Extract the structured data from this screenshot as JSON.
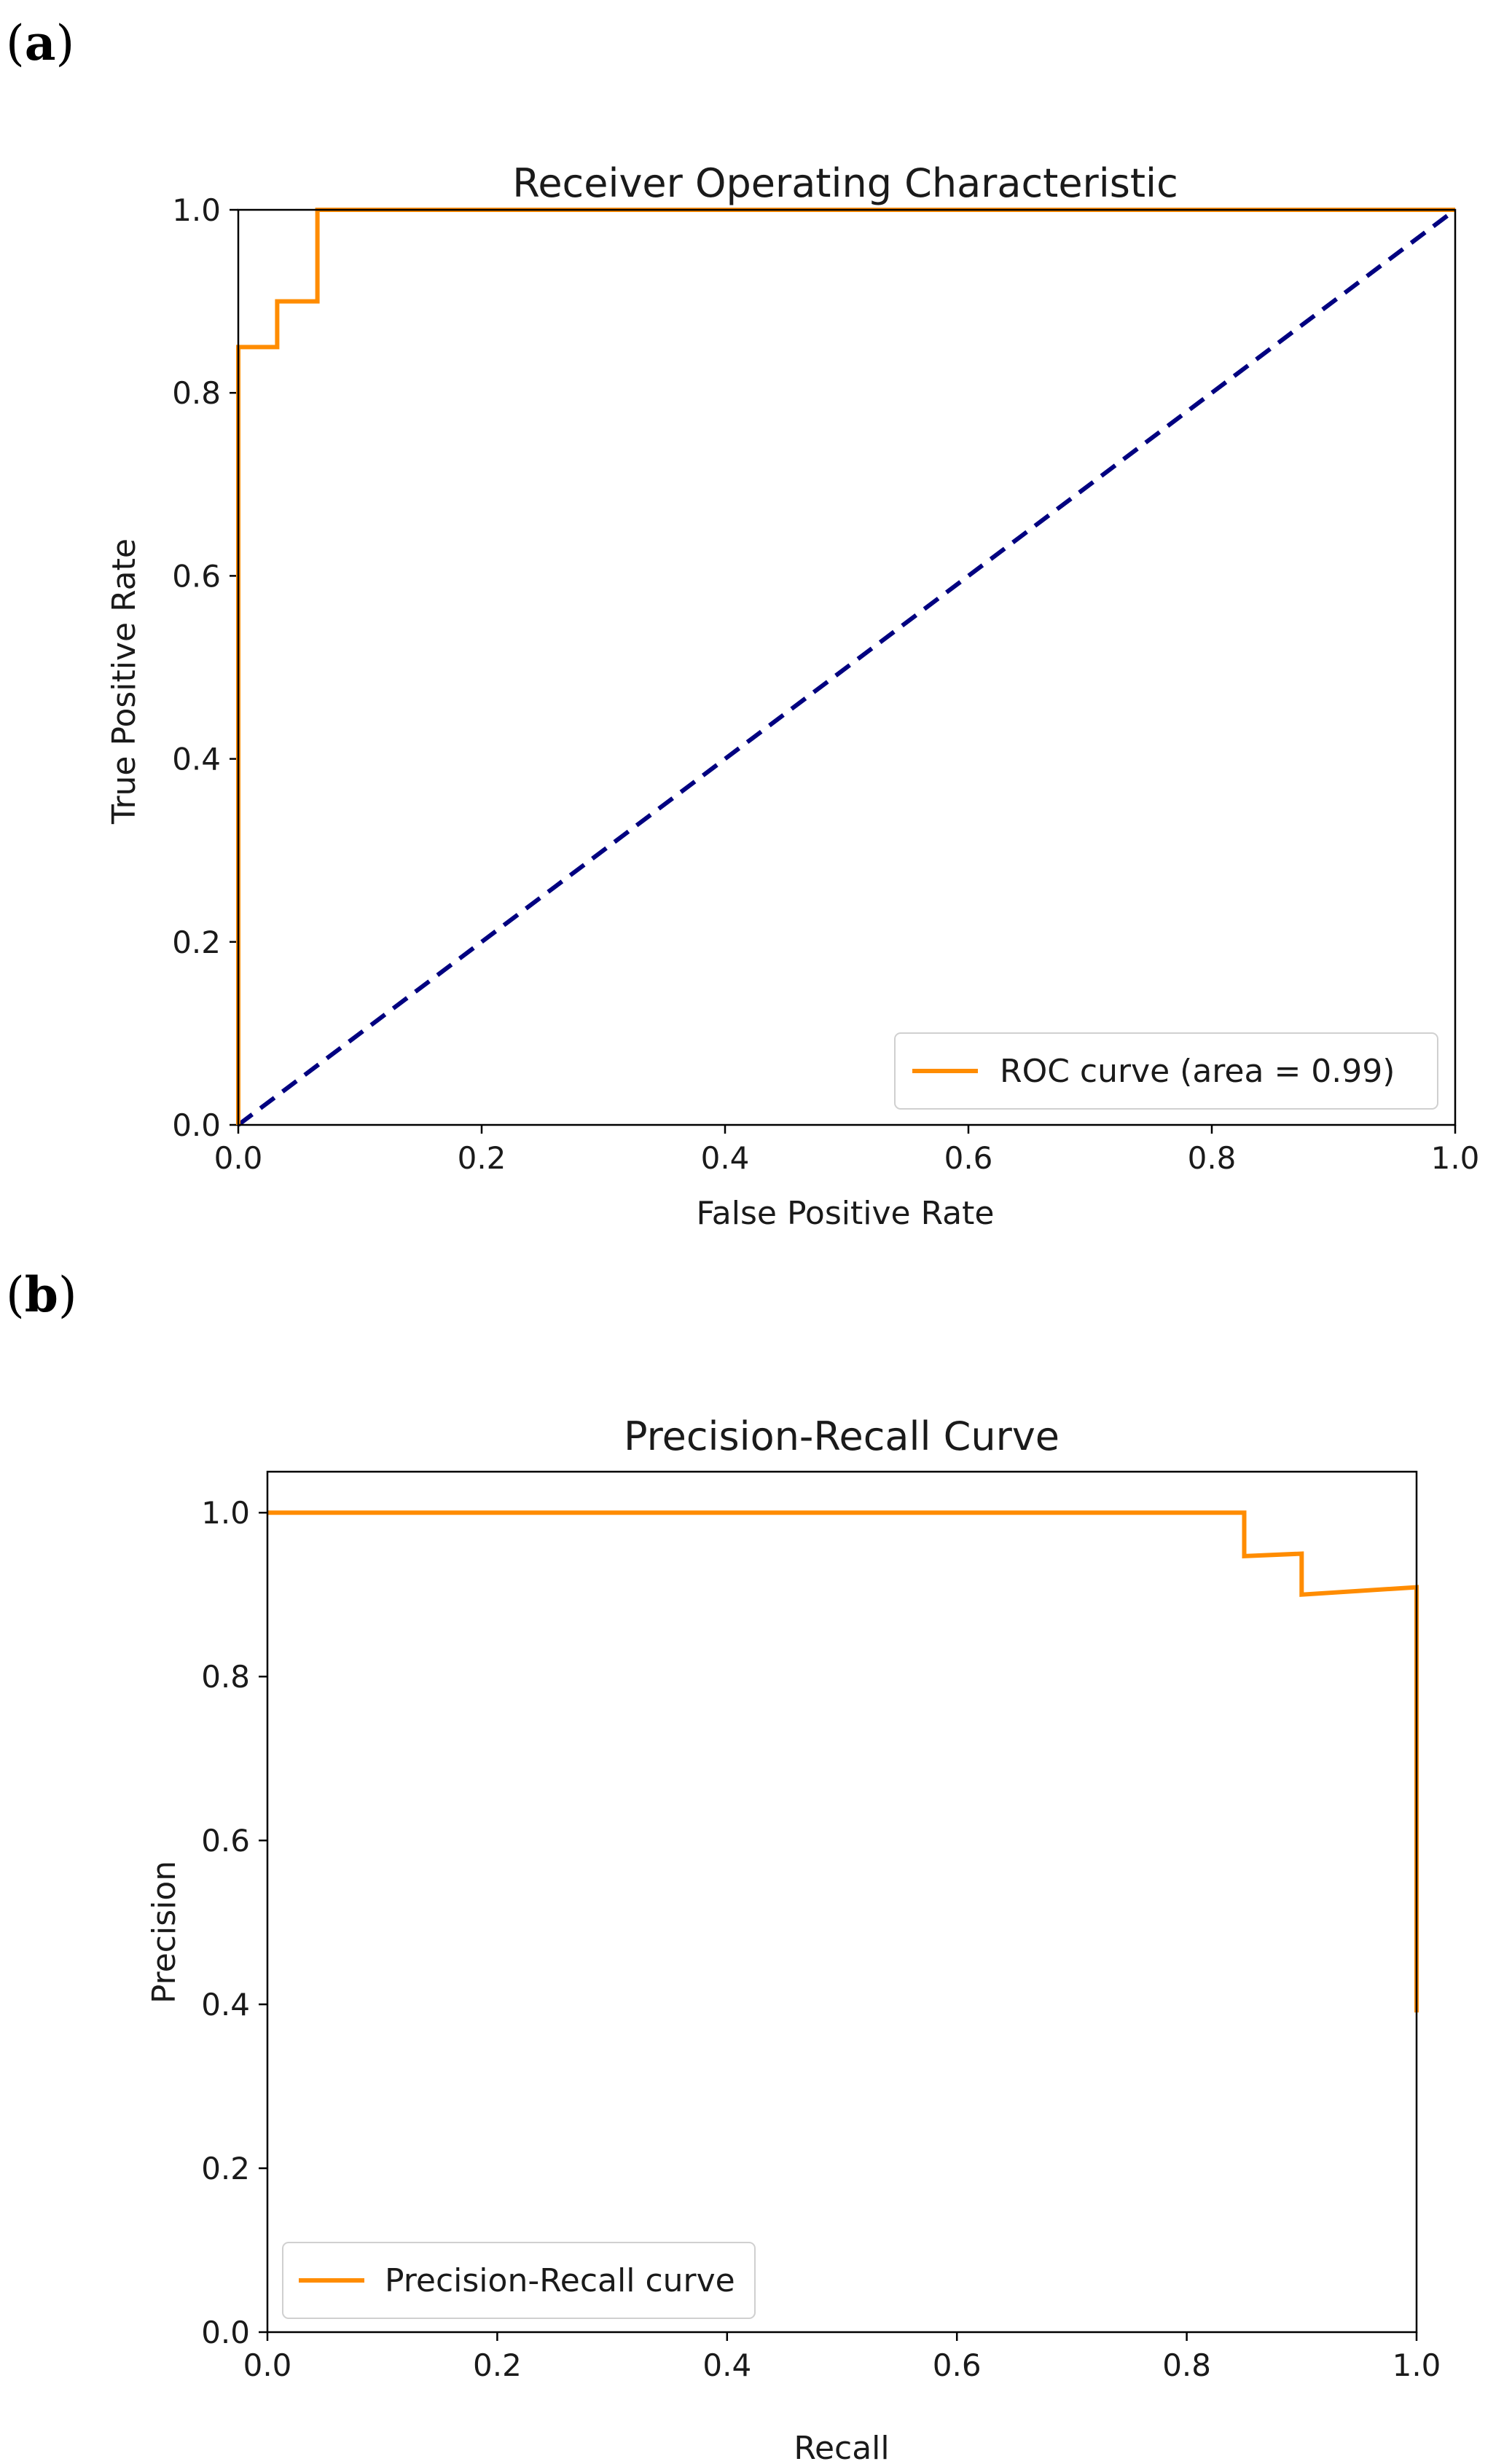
{
  "panels": [
    {
      "label_open": "(",
      "label_letter": "a",
      "label_close": ")"
    },
    {
      "label_open": "(",
      "label_letter": "b",
      "label_close": ")"
    }
  ],
  "chart_data": [
    {
      "type": "line",
      "title": "Receiver Operating Characteristic",
      "xlabel": "False Positive Rate",
      "ylabel": "True Positive Rate",
      "xlim": [
        0.0,
        1.0
      ],
      "ylim": [
        0.0,
        1.0
      ],
      "xticks": [
        "0.0",
        "0.2",
        "0.4",
        "0.6",
        "0.8",
        "1.0"
      ],
      "yticks": [
        "0.0",
        "0.2",
        "0.4",
        "0.6",
        "0.8",
        "1.0"
      ],
      "grid": false,
      "legend_position": "lower-right",
      "series": [
        {
          "name": "ROC curve (area = 0.99)",
          "color": "#ff8c00",
          "style": "solid",
          "in_legend": true,
          "x": [
            0.0,
            0.0,
            0.032,
            0.032,
            0.065,
            0.065,
            1.0
          ],
          "y": [
            0.0,
            0.85,
            0.85,
            0.9,
            0.9,
            1.0,
            1.0
          ]
        },
        {
          "name": "Chance",
          "color": "#000080",
          "style": "dashed",
          "in_legend": false,
          "x": [
            0.0,
            1.0
          ],
          "y": [
            0.0,
            1.0
          ]
        }
      ]
    },
    {
      "type": "line",
      "title": "Precision-Recall Curve",
      "xlabel": "Recall",
      "ylabel": "Precision",
      "xlim": [
        0.0,
        1.0
      ],
      "ylim": [
        0.0,
        1.05
      ],
      "xticks": [
        "0.0",
        "0.2",
        "0.4",
        "0.6",
        "0.8",
        "1.0"
      ],
      "yticks": [
        "0.0",
        "0.2",
        "0.4",
        "0.6",
        "0.8",
        "1.0"
      ],
      "grid": false,
      "legend_position": "lower-left",
      "series": [
        {
          "name": "Precision-Recall curve",
          "color": "#ff8c00",
          "style": "solid",
          "in_legend": true,
          "x": [
            0.0,
            0.85,
            0.85,
            0.9,
            0.9,
            1.0,
            1.0
          ],
          "y": [
            1.0,
            1.0,
            0.947,
            0.95,
            0.9,
            0.909,
            0.39
          ]
        }
      ]
    }
  ]
}
